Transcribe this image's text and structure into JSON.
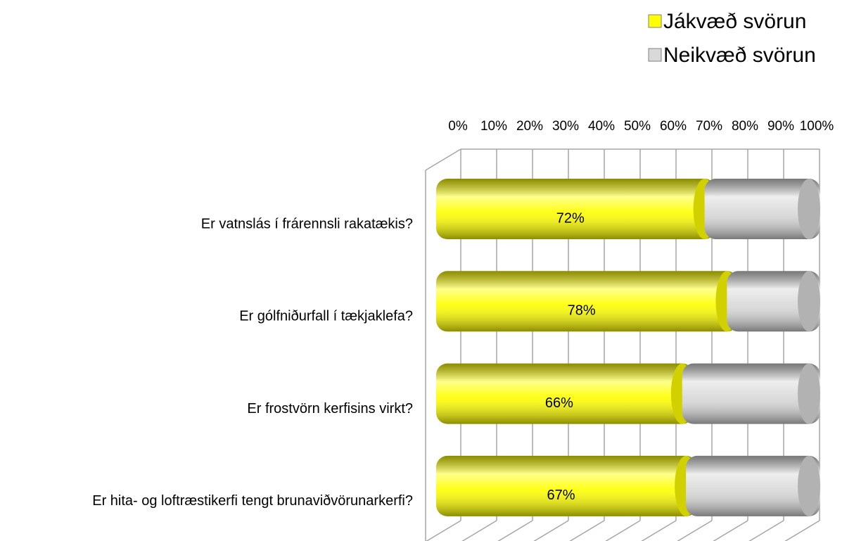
{
  "chart_data": {
    "type": "bar",
    "orientation": "horizontal",
    "stacked": true,
    "categories": [
      "Er vatnslás í frárennsli rakatækis?",
      "Er gólfniðurfall í tækjaklefa?",
      "Er frostvörn kerfisins virkt?",
      "Er hita- og loftræstikerfi tengt brunaviðvörunarkerfi?"
    ],
    "series": [
      {
        "name": "Jákvæð svörun",
        "color": "#ffff00",
        "values": [
          72,
          78,
          66,
          67
        ],
        "value_labels": [
          "72%",
          "78%",
          "66%",
          "67%"
        ]
      },
      {
        "name": "Neikvæð svörun",
        "color": "#d9d9d9",
        "values": [
          28,
          22,
          34,
          33
        ]
      }
    ],
    "xlim": [
      0,
      100
    ],
    "xticks": [
      {
        "value": 0,
        "label": "0%"
      },
      {
        "value": 10,
        "label": "10%"
      },
      {
        "value": 20,
        "label": "20%"
      },
      {
        "value": 30,
        "label": "30%"
      },
      {
        "value": 40,
        "label": "40%"
      },
      {
        "value": 50,
        "label": "50%"
      },
      {
        "value": 60,
        "label": "60%"
      },
      {
        "value": 70,
        "label": "70%"
      },
      {
        "value": 80,
        "label": "80%"
      },
      {
        "value": 90,
        "label": "90%"
      },
      {
        "value": 100,
        "label": "100%"
      }
    ],
    "grid": true,
    "legend": "top-right"
  }
}
